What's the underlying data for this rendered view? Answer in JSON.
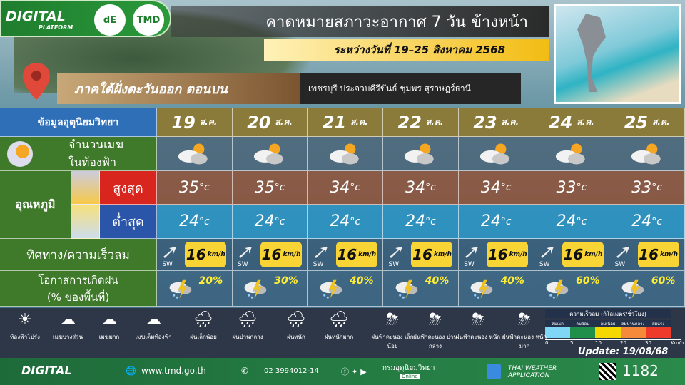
{
  "header": {
    "logo_text": "DIGITAL",
    "logo_sub": "PLATFORM",
    "logo2": "dE",
    "logo3": "TMD",
    "title": "คาดหมายสภาวะอากาศ 7 วัน ข้างหน้า",
    "date_range": "ระหว่างวันที่ 19–25 สิงหาคม 2568",
    "region": "ภาคใต้ฝั่งตะวันออก ตอนบน",
    "provinces": "เพชรบุรี ประจวบคีรีขันธ์ ชุมพร สุราษฎร์ธานี"
  },
  "table": {
    "header_label": "ข้อมูลอุตุนิยมวิทยา",
    "cloud_label": "จำนวนเมฆ\nในท้องฟ้า",
    "temp_label": "อุณหภูมิ",
    "high_label": "สูงสุด",
    "low_label": "ต่ำสุด",
    "wind_label": "ทิศทาง/ความเร็วลม",
    "rain_label": "โอกาสการเกิดฝน\n(% ของพื้นที่)",
    "temp_unit": "°c",
    "wind_unit": "km/h",
    "month_abbr": "ส.ค.",
    "days": [
      {
        "day": "19",
        "cloud": "partly-cloudy",
        "high": "35",
        "low": "24",
        "wind_dir": "SW",
        "wind_speed": "16",
        "rain_pct": "20%",
        "rain_icon": "thunderstorm"
      },
      {
        "day": "20",
        "cloud": "partly-cloudy",
        "high": "35",
        "low": "24",
        "wind_dir": "SW",
        "wind_speed": "16",
        "rain_pct": "30%",
        "rain_icon": "thunderstorm"
      },
      {
        "day": "21",
        "cloud": "partly-cloudy",
        "high": "34",
        "low": "24",
        "wind_dir": "SW",
        "wind_speed": "16",
        "rain_pct": "40%",
        "rain_icon": "thunderstorm"
      },
      {
        "day": "22",
        "cloud": "partly-cloudy",
        "high": "34",
        "low": "24",
        "wind_dir": "SW",
        "wind_speed": "16",
        "rain_pct": "40%",
        "rain_icon": "thunderstorm"
      },
      {
        "day": "23",
        "cloud": "partly-cloudy",
        "high": "34",
        "low": "24",
        "wind_dir": "SW",
        "wind_speed": "16",
        "rain_pct": "40%",
        "rain_icon": "thunderstorm"
      },
      {
        "day": "24",
        "cloud": "mostly-cloudy",
        "high": "33",
        "low": "24",
        "wind_dir": "SW",
        "wind_speed": "16",
        "rain_pct": "60%",
        "rain_icon": "thunderstorm"
      },
      {
        "day": "25",
        "cloud": "mostly-cloudy",
        "high": "33",
        "low": "24",
        "wind_dir": "SW",
        "wind_speed": "16",
        "rain_pct": "60%",
        "rain_icon": "thunderstorm"
      }
    ]
  },
  "legend": {
    "items": [
      "ท้องฟ้าโปร่ง",
      "เมฆบางส่วน",
      "เมฆมาก",
      "เมฆเต็มท้องฟ้า",
      "ฝนเล็กน้อย",
      "ฝนปานกลาง",
      "ฝนหนัก",
      "ฝนหนักมาก",
      "ฝนฟ้าคะนอง เล็กน้อย",
      "ฝนฟ้าคะนอง ปานกลาง",
      "ฝนฟ้าคะนอง หนัก",
      "ฝนฟ้าคะนอง หนักมาก"
    ],
    "wind_scale_title": "ความเร็วลม (กิโลเมตร/ชั่วโมง)",
    "wind_scale": [
      {
        "label": "ลมเบา",
        "color": "#7fd6f5"
      },
      {
        "label": "ลมอ่อน",
        "color": "#1f8f4a"
      },
      {
        "label": "ลมเฉื่อย",
        "color": "#f5d800"
      },
      {
        "label": "ลมปานกลาง",
        "color": "#f58a3a"
      },
      {
        "label": "ลมแรง",
        "color": "#ee3a2a"
      }
    ],
    "wind_ticks": [
      "0",
      "5",
      "10",
      "20",
      "30"
    ],
    "wind_tick_unit": "Km/h",
    "update": "Update: 19/08/68"
  },
  "footer": {
    "logo_text": "DIGITAL",
    "website": "www.tmd.go.th",
    "phone": "02 3994012-14",
    "org": "กรมอุตุนิยมวิทยา",
    "online": "Online",
    "app": "THAI WEATHER APPLICATION",
    "hotline": "1182"
  }
}
